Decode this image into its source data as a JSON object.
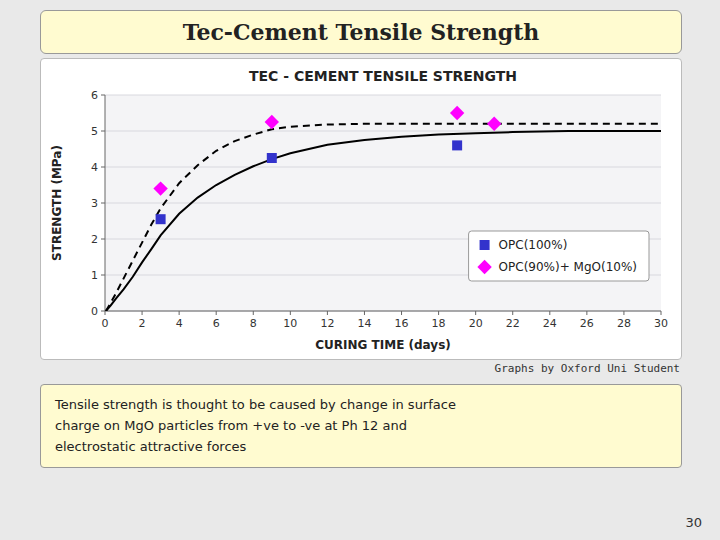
{
  "title": "Tec-Cement Tensile Strength",
  "note": "Tensile strength is thought to be caused by change in surface\ncharge on MgO particles from +ve to -ve at Ph 12 and\nelectrostatic attractive forces",
  "page_number": "30",
  "chart_data": {
    "type": "scatter",
    "title": "TEC - CEMENT TENSILE STRENGTH",
    "subtitle": "Graphs by Oxford Uni Student",
    "x_label": "CURING TIME (days)",
    "y_label": "STRENGTH (MPa)",
    "xlim": [
      0,
      30
    ],
    "ylim": [
      0,
      6
    ],
    "xticks": [
      0,
      2,
      4,
      6,
      8,
      10,
      12,
      14,
      16,
      18,
      20,
      22,
      24,
      26,
      28,
      30
    ],
    "yticks": [
      0,
      1,
      2,
      3,
      4,
      5,
      6
    ],
    "grid": "y",
    "legend": "lower right",
    "series": [
      {
        "type": "line",
        "line_style": "solid",
        "color": "#000000",
        "x": [
          0.05,
          0.3,
          0.6,
          1,
          1.5,
          2,
          2.5,
          3,
          4,
          5,
          6,
          7,
          8,
          9,
          10,
          12,
          14,
          16,
          18,
          20,
          22,
          25,
          28,
          30
        ],
        "values": [
          0.0,
          0.15,
          0.35,
          0.6,
          0.95,
          1.35,
          1.72,
          2.1,
          2.7,
          3.15,
          3.5,
          3.78,
          4.02,
          4.22,
          4.38,
          4.62,
          4.75,
          4.84,
          4.9,
          4.94,
          4.97,
          5.0,
          5.0,
          5.0
        ]
      },
      {
        "type": "line",
        "line_style": "dashed",
        "color": "#000000",
        "x": [
          0.05,
          0.3,
          0.6,
          1,
          1.5,
          2,
          2.5,
          3,
          4,
          5,
          6,
          7,
          8,
          9,
          10,
          12,
          14,
          16,
          18,
          20,
          22,
          25,
          28,
          30
        ],
        "values": [
          0.0,
          0.22,
          0.5,
          0.9,
          1.4,
          1.9,
          2.4,
          2.85,
          3.55,
          4.05,
          4.45,
          4.72,
          4.9,
          5.05,
          5.12,
          5.18,
          5.2,
          5.2,
          5.2,
          5.2,
          5.2,
          5.2,
          5.2,
          5.2
        ]
      },
      {
        "type": "scatter",
        "name": "OPC(100%)",
        "color": "#3333CC",
        "marker": "square",
        "x": [
          3,
          9,
          19
        ],
        "values": [
          2.55,
          4.25,
          4.6
        ]
      },
      {
        "type": "scatter",
        "name": "OPC(90%)+ MgO(10%)",
        "color": "#FF00FF",
        "marker": "diamond",
        "x": [
          3,
          9,
          19,
          21
        ],
        "values": [
          3.4,
          5.25,
          5.5,
          5.2
        ]
      }
    ]
  }
}
